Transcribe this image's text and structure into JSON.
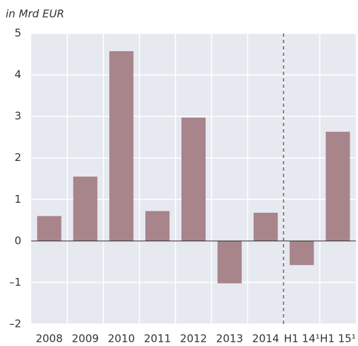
{
  "chart_data": {
    "type": "bar",
    "y_label": "in Mrd EUR",
    "categories": [
      "2008",
      "2009",
      "2010",
      "2011",
      "2012",
      "2013",
      "2014",
      "H1 14¹",
      "H1 15¹"
    ],
    "values": [
      0.6,
      1.55,
      4.57,
      0.72,
      2.97,
      -1.02,
      0.68,
      -0.58,
      2.63
    ],
    "color": "#a8848b",
    "ylim": [
      -2,
      5
    ],
    "yticks": [
      {
        "value": -2,
        "label": "–2"
      },
      {
        "value": -1,
        "label": "–1"
      },
      0,
      1,
      2,
      3,
      4,
      5
    ],
    "grid": true
  }
}
